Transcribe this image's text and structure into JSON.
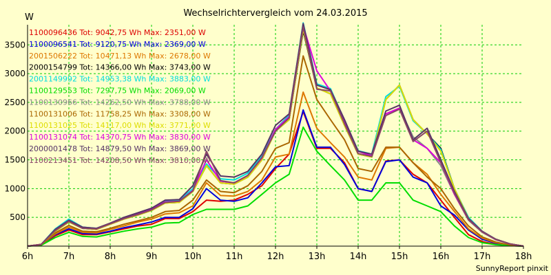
{
  "chart_data": {
    "type": "line",
    "title": "Wechselrichtervergleich vom 24.03.2015",
    "ylabel": "W",
    "xlabel": "",
    "credit": "SunnyReport pinxit",
    "xlim": [
      6,
      18
    ],
    "ylim": [
      0,
      3850
    ],
    "grid": true,
    "legend": "top-left",
    "x_ticks": [
      {
        "value": 6,
        "label": "6h"
      },
      {
        "value": 7,
        "label": "7h"
      },
      {
        "value": 8,
        "label": "8h"
      },
      {
        "value": 9,
        "label": "9h"
      },
      {
        "value": 10,
        "label": "10h"
      },
      {
        "value": 11,
        "label": "11h"
      },
      {
        "value": 12,
        "label": "12h"
      },
      {
        "value": 13,
        "label": "13h"
      },
      {
        "value": 14,
        "label": "14h"
      },
      {
        "value": 15,
        "label": "15h"
      },
      {
        "value": 16,
        "label": "16h"
      },
      {
        "value": 17,
        "label": "17h"
      },
      {
        "value": 18,
        "label": "18h"
      }
    ],
    "y_ticks": [
      500,
      1000,
      1500,
      2000,
      2500,
      3000,
      3500
    ],
    "x": [
      6,
      6.33,
      6.67,
      7,
      7.33,
      7.67,
      8,
      8.33,
      8.67,
      9,
      9.33,
      9.67,
      10,
      10.33,
      10.67,
      11,
      11.33,
      11.67,
      12,
      12.33,
      12.67,
      13,
      13.33,
      13.67,
      14,
      14.33,
      14.67,
      15,
      15.33,
      15.67,
      16,
      16.33,
      16.67,
      17,
      17.33,
      17.67,
      18
    ],
    "series": [
      {
        "name": "1100096436 Tot: 9042,75 Wh Max: 2351,00 W",
        "color": "#dd0000",
        "values": [
          0,
          20,
          180,
          280,
          200,
          200,
          250,
          300,
          350,
          380,
          480,
          480,
          600,
          800,
          780,
          800,
          900,
          1050,
          1350,
          1600,
          2340,
          1700,
          1700,
          1450,
          1000,
          950,
          1480,
          1500,
          1250,
          1100,
          800,
          500,
          200,
          80,
          30,
          10,
          0
        ]
      },
      {
        "name": "1100096541 Tot: 9120,75 Wh Max: 2369,00 W",
        "color": "#0000dd",
        "values": [
          0,
          20,
          200,
          300,
          220,
          210,
          260,
          320,
          370,
          420,
          500,
          500,
          650,
          1000,
          800,
          780,
          840,
          1100,
          1380,
          1400,
          2369,
          1720,
          1720,
          1420,
          1000,
          950,
          1470,
          1500,
          1200,
          1100,
          700,
          540,
          280,
          120,
          50,
          15,
          0
        ]
      },
      {
        "name": "2001506222 Tot: 10471,13 Wh Max: 2678,00 W",
        "color": "#dd7700",
        "values": [
          0,
          25,
          210,
          330,
          240,
          230,
          290,
          350,
          420,
          470,
          560,
          580,
          700,
          1100,
          880,
          870,
          950,
          1150,
          1550,
          1600,
          2678,
          2050,
          1800,
          1550,
          1200,
          1150,
          1700,
          1720,
          1450,
          1250,
          900,
          600,
          300,
          140,
          60,
          20,
          0
        ]
      },
      {
        "name": "2000154799 Tot: 14366,00 Wh Max: 3743,00 W",
        "color": "#000000",
        "values": [
          0,
          30,
          260,
          420,
          310,
          290,
          380,
          470,
          540,
          620,
          750,
          760,
          950,
          1400,
          1100,
          1080,
          1200,
          1500,
          2000,
          2200,
          3743,
          2750,
          2650,
          2100,
          1600,
          1550,
          2550,
          2800,
          2200,
          1950,
          1700,
          1000,
          480,
          250,
          120,
          40,
          0
        ]
      },
      {
        "name": "2001149992 Tot: 14953,38 Wh Max: 3883,00 W",
        "color": "#00dddd",
        "values": [
          0,
          30,
          300,
          470,
          330,
          310,
          390,
          490,
          570,
          640,
          790,
          800,
          1000,
          1430,
          1170,
          1150,
          1270,
          1570,
          2030,
          2280,
          3883,
          2820,
          2740,
          2180,
          1660,
          1600,
          2600,
          2780,
          2180,
          1950,
          1680,
          1000,
          500,
          260,
          120,
          40,
          0
        ]
      },
      {
        "name": "1100129553 Tot: 7297,75 Wh Max: 2069,00 W",
        "color": "#00dd00",
        "values": [
          0,
          15,
          150,
          240,
          170,
          160,
          210,
          260,
          300,
          330,
          400,
          410,
          550,
          640,
          640,
          640,
          700,
          900,
          1100,
          1250,
          2069,
          1650,
          1400,
          1150,
          800,
          800,
          1100,
          1100,
          800,
          700,
          600,
          350,
          150,
          60,
          25,
          10,
          0
        ]
      },
      {
        "name": "1100130966 Tot: 14262,50 Wh Max: 3788,00 W",
        "color": "#888888",
        "values": [
          0,
          30,
          270,
          430,
          310,
          290,
          380,
          470,
          540,
          620,
          750,
          760,
          950,
          1400,
          1100,
          1080,
          1200,
          1500,
          2000,
          2200,
          3788,
          2750,
          2650,
          2100,
          1600,
          1550,
          2300,
          2400,
          1900,
          1700,
          1400,
          900,
          450,
          240,
          110,
          40,
          0
        ]
      },
      {
        "name": "1100131006 Tot: 11758,25 Wh Max: 3308,00 W",
        "color": "#aa6600",
        "values": [
          0,
          25,
          230,
          360,
          260,
          250,
          310,
          380,
          440,
          500,
          600,
          620,
          800,
          1150,
          950,
          930,
          1050,
          1300,
          1700,
          1800,
          3308,
          2550,
          2200,
          1850,
          1350,
          1300,
          1720,
          1720,
          1450,
          1200,
          1000,
          650,
          350,
          160,
          70,
          20,
          0
        ]
      },
      {
        "name": "1100131025 Tot: 14117,00 Wh Max: 3771,00 W",
        "color": "#dddd00",
        "values": [
          0,
          30,
          260,
          420,
          310,
          290,
          380,
          470,
          540,
          620,
          750,
          760,
          950,
          1400,
          1100,
          1080,
          1200,
          1500,
          2000,
          2200,
          3771,
          2750,
          2650,
          2100,
          1600,
          1550,
          2550,
          2800,
          2200,
          1950,
          1650,
          1000,
          480,
          250,
          120,
          40,
          0
        ]
      },
      {
        "name": "1100131074 Tot: 14370,75 Wh Max: 3830,00 W",
        "color": "#dd00dd",
        "values": [
          0,
          30,
          280,
          440,
          320,
          300,
          390,
          480,
          560,
          640,
          770,
          780,
          970,
          1500,
          1130,
          1100,
          1230,
          1530,
          2030,
          2250,
          3830,
          3050,
          2700,
          2150,
          1650,
          1570,
          2300,
          2400,
          1850,
          1700,
          1450,
          900,
          460,
          250,
          115,
          40,
          0
        ]
      },
      {
        "name": "2000001478 Tot: 14879,50 Wh Max: 3869,00 W",
        "color": "#553366",
        "values": [
          0,
          30,
          290,
          450,
          330,
          310,
          400,
          500,
          580,
          660,
          800,
          810,
          1050,
          1600,
          1220,
          1200,
          1300,
          1600,
          2100,
          2300,
          3869,
          2800,
          2720,
          2200,
          1650,
          1600,
          2350,
          2450,
          1850,
          2050,
          1500,
          950,
          480,
          260,
          120,
          40,
          0
        ]
      },
      {
        "name": "1100213451 Tot: 14208,50 Wh Max: 3810,00 W",
        "color": "#884466",
        "values": [
          0,
          30,
          270,
          430,
          310,
          300,
          390,
          480,
          550,
          630,
          760,
          780,
          960,
          1650,
          1140,
          1100,
          1230,
          1540,
          2000,
          2230,
          3810,
          2730,
          2700,
          2130,
          1610,
          1560,
          2270,
          2380,
          1820,
          2000,
          1450,
          920,
          460,
          250,
          115,
          40,
          0
        ]
      }
    ]
  }
}
